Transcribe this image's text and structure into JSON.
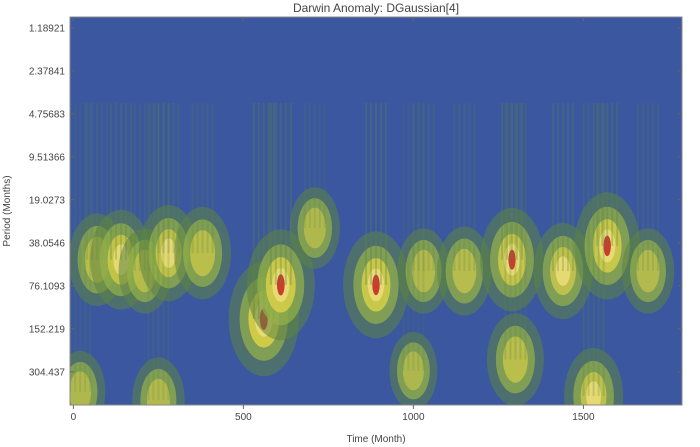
{
  "chart_data": {
    "type": "heatmap",
    "title": "Darwin Anomaly: DGaussian[4]",
    "xlabel": "Time (Month)",
    "ylabel": "Period (Months)",
    "xlim": [
      -10,
      1790
    ],
    "x_ticks": [
      0,
      500,
      1000,
      1500
    ],
    "y_ticks": [
      "1.18921",
      "2.37841",
      "4.75683",
      "9.51366",
      "19.0273",
      "38.0546",
      "76.1093",
      "152.219",
      "304.437"
    ],
    "y_scale": "log",
    "ylim_period": [
      1.0,
      520
    ],
    "y_axis_reversed": true,
    "colormap": [
      "#3a57a0",
      "#5d8443",
      "#95b24a",
      "#d7cf48",
      "#efdf7d",
      "#c7342a"
    ],
    "hotspots": [
      {
        "x": 70,
        "period": 50,
        "intensity": 0.7
      },
      {
        "x": 140,
        "period": 50,
        "intensity": 0.8
      },
      {
        "x": 210,
        "period": 60,
        "intensity": 0.6
      },
      {
        "x": 280,
        "period": 45,
        "intensity": 0.75
      },
      {
        "x": 380,
        "period": 45,
        "intensity": 0.7
      },
      {
        "x": 560,
        "period": 130,
        "intensity": 1.0
      },
      {
        "x": 610,
        "period": 75,
        "intensity": 0.95
      },
      {
        "x": 710,
        "period": 30,
        "intensity": 0.55
      },
      {
        "x": 890,
        "period": 75,
        "intensity": 0.9
      },
      {
        "x": 1030,
        "period": 60,
        "intensity": 0.6
      },
      {
        "x": 1150,
        "period": 60,
        "intensity": 0.65
      },
      {
        "x": 1290,
        "period": 50,
        "intensity": 0.85
      },
      {
        "x": 1440,
        "period": 60,
        "intensity": 0.75
      },
      {
        "x": 1570,
        "period": 40,
        "intensity": 0.9
      },
      {
        "x": 1690,
        "period": 60,
        "intensity": 0.6
      },
      {
        "x": 1300,
        "period": 250,
        "intensity": 0.7
      },
      {
        "x": 1530,
        "period": 450,
        "intensity": 0.75
      },
      {
        "x": 250,
        "period": 480,
        "intensity": 0.6
      },
      {
        "x": 20,
        "period": 420,
        "intensity": 0.55
      },
      {
        "x": 1000,
        "period": 300,
        "intensity": 0.5
      }
    ]
  }
}
